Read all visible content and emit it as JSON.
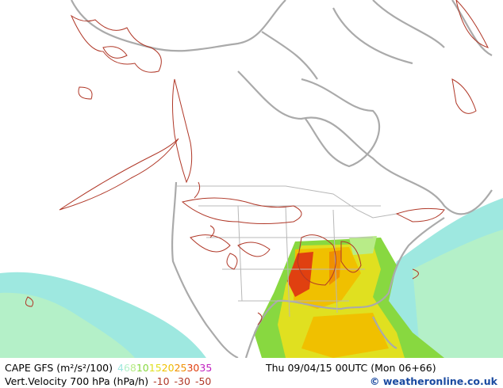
{
  "map": {
    "product": "CAPE GFS (m²/s²/100)",
    "cape_legend": [
      {
        "label": "4",
        "color": "#9ee8e0"
      },
      {
        "label": "6",
        "color": "#b4f0c8"
      },
      {
        "label": "8",
        "color": "#b8ec88"
      },
      {
        "label": "10",
        "color": "#88d840"
      },
      {
        "label": "15",
        "color": "#e0e020"
      },
      {
        "label": "20",
        "color": "#f0c000"
      },
      {
        "label": "25",
        "color": "#f09000"
      },
      {
        "label": "30",
        "color": "#e04010"
      },
      {
        "label": "35",
        "color": "#c020c0"
      }
    ],
    "valid_time": "Thu 09/04/15 00UTC (Mon 06+66)",
    "overlay": "Vert.Velocity 700 hPa (hPa/h)",
    "overlay_legend": [
      {
        "label": "-10",
        "color": "#b03828"
      },
      {
        "label": "-30",
        "color": "#b03828"
      },
      {
        "label": "-50",
        "color": "#b03828"
      }
    ],
    "credit": "© weatheronline.co.uk"
  }
}
